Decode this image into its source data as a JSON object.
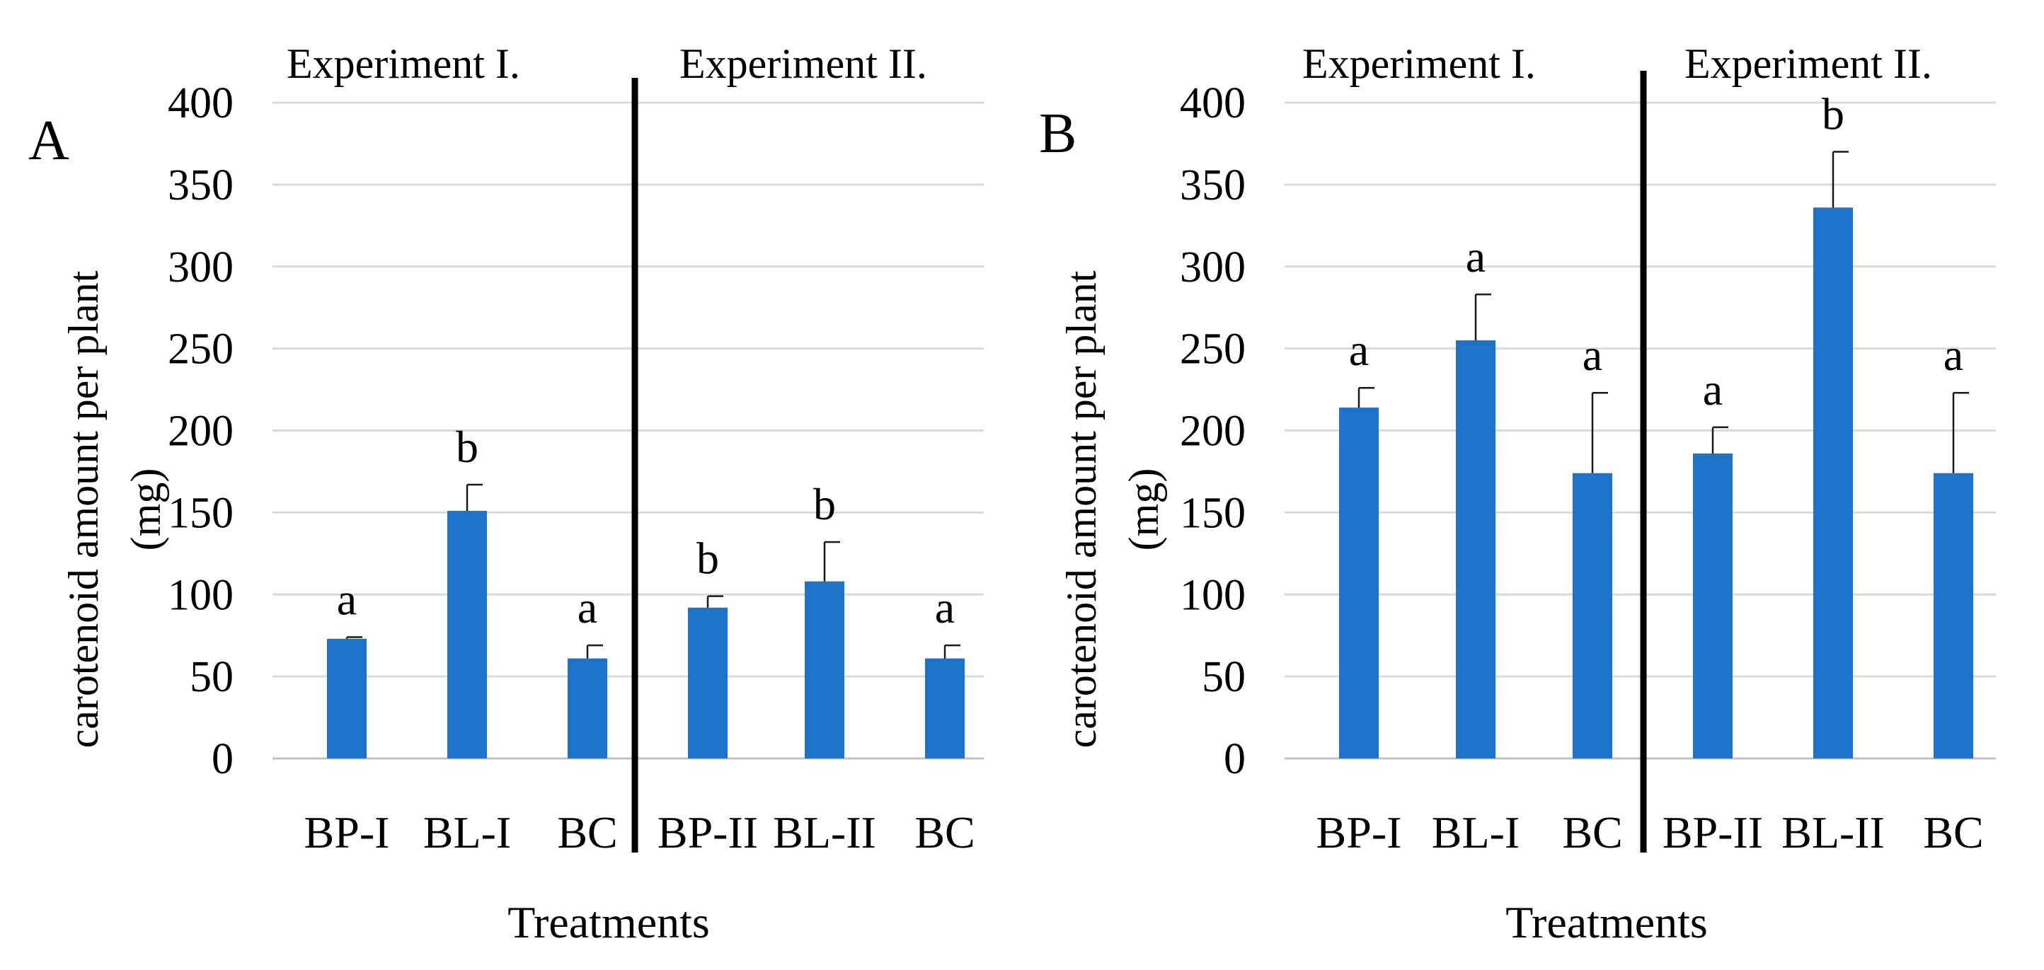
{
  "bar_color": "#1c73c9",
  "grid_color": "#d9d9d9",
  "chart_data": [
    {
      "type": "bar",
      "panel": "A",
      "ylabel_line1": "carotenoid amount per plant",
      "ylabel_line2": "(mg)",
      "xlabel": "Treatments",
      "ylim": [
        0,
        400
      ],
      "yticks": [
        "0",
        "50",
        "100",
        "150",
        "200",
        "250",
        "300",
        "350",
        "400"
      ],
      "groups": [
        "Experiment I.",
        "Experiment II."
      ],
      "categories": [
        "BP-I",
        "BL-I",
        "BC",
        "BP-II",
        "BL-II",
        "BC"
      ],
      "values": [
        73,
        151,
        61,
        92,
        108,
        61
      ],
      "errors": [
        1,
        16,
        8,
        7,
        24,
        8
      ],
      "significance": [
        "a",
        "b",
        "a",
        "b",
        "b",
        "a"
      ]
    },
    {
      "type": "bar",
      "panel": "B",
      "ylabel_line1": "carotenoid amount per plant",
      "ylabel_line2": "(mg)",
      "xlabel": "Treatments",
      "ylim": [
        0,
        400
      ],
      "yticks": [
        "0",
        "50",
        "100",
        "150",
        "200",
        "250",
        "300",
        "350",
        "400"
      ],
      "groups": [
        "Experiment I.",
        "Experiment II."
      ],
      "categories": [
        "BP-I",
        "BL-I",
        "BC",
        "BP-II",
        "BL-II",
        "BC"
      ],
      "values": [
        214,
        255,
        174,
        186,
        336,
        174
      ],
      "errors": [
        12,
        28,
        49,
        16,
        34,
        49
      ],
      "significance": [
        "a",
        "a",
        "a",
        "a",
        "b",
        "a"
      ]
    }
  ]
}
